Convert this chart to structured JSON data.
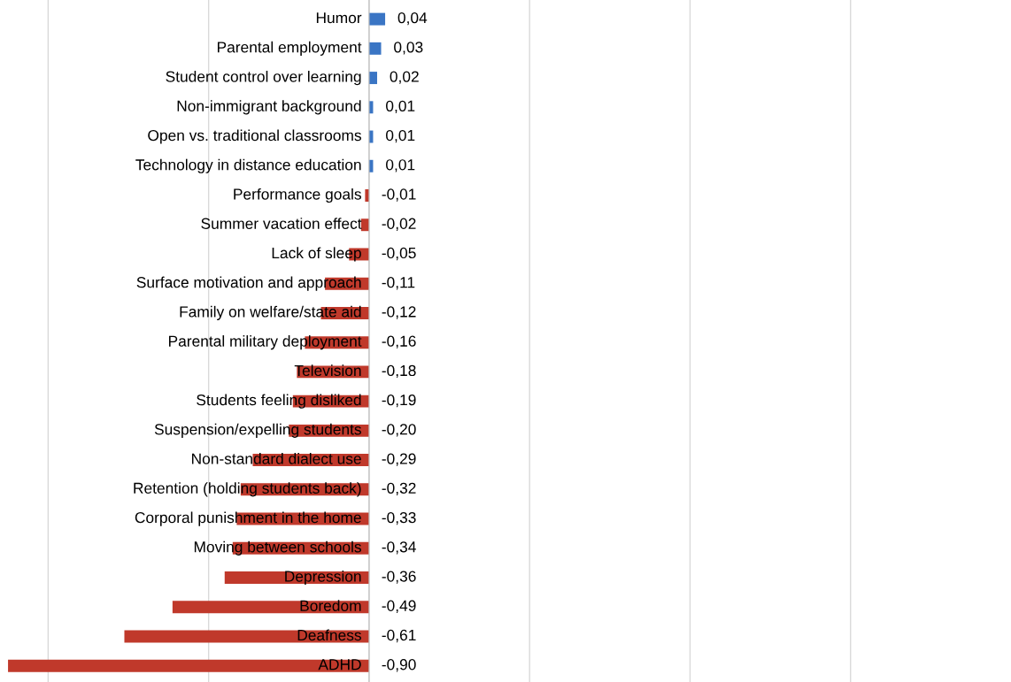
{
  "chart_data": {
    "type": "bar",
    "orientation": "horizontal",
    "categories": [
      "Humor",
      "Parental employment",
      "Student control over learning",
      "Non-immigrant background",
      "Open vs. traditional classrooms",
      "Technology in distance education",
      "Performance goals",
      "Summer vacation effect",
      "Lack of sleep",
      "Surface motivation and approach",
      "Family on welfare/state aid",
      "Parental military deployment",
      "Television",
      "Students feeling disliked",
      "Suspension/expelling students",
      "Non-standard dialect use",
      "Retention (holding students back)",
      "Corporal punishment in the home",
      "Moving between schools",
      "Depression",
      "Boredom",
      "Deafness",
      "ADHD"
    ],
    "values": [
      0.04,
      0.03,
      0.02,
      0.01,
      0.01,
      0.01,
      -0.01,
      -0.02,
      -0.05,
      -0.11,
      -0.12,
      -0.16,
      -0.18,
      -0.19,
      -0.2,
      -0.29,
      -0.32,
      -0.33,
      -0.34,
      -0.36,
      -0.49,
      -0.61,
      -0.9
    ],
    "value_labels": [
      "0,04",
      "0,03",
      "0,02",
      "0,01",
      "0,01",
      "0,01",
      "-0,01",
      "-0,02",
      "-0,05",
      "-0,11",
      "-0,12",
      "-0,16",
      "-0,18",
      "-0,19",
      "-0,20",
      "-0,29",
      "-0,32",
      "-0,33",
      "-0,34",
      "-0,36",
      "-0,49",
      "-0,61",
      "-0,90"
    ],
    "colors": [
      "#3a75c4",
      "#3a75c4",
      "#3a75c4",
      "#3a75c4",
      "#3a75c4",
      "#3a75c4",
      "#c0392b",
      "#c0392b",
      "#c0392b",
      "#c0392b",
      "#c0392b",
      "#c0392b",
      "#c0392b",
      "#c0392b",
      "#c0392b",
      "#c0392b",
      "#c0392b",
      "#c0392b",
      "#c0392b",
      "#c0392b",
      "#c0392b",
      "#c0392b",
      "#c0392b"
    ],
    "xlim": [
      -0.92,
      1.6
    ],
    "xticks": [
      {
        "value": -0.8,
        "label": null
      },
      {
        "value": -0.4,
        "label": null
      },
      {
        "value": 0,
        "label": null
      },
      {
        "value": 0.4,
        "label": null
      },
      {
        "value": 0.8,
        "label": null
      },
      {
        "value": 1.2,
        "label": null
      }
    ],
    "grid": "x",
    "tick_labels": "y",
    "legend": false
  }
}
